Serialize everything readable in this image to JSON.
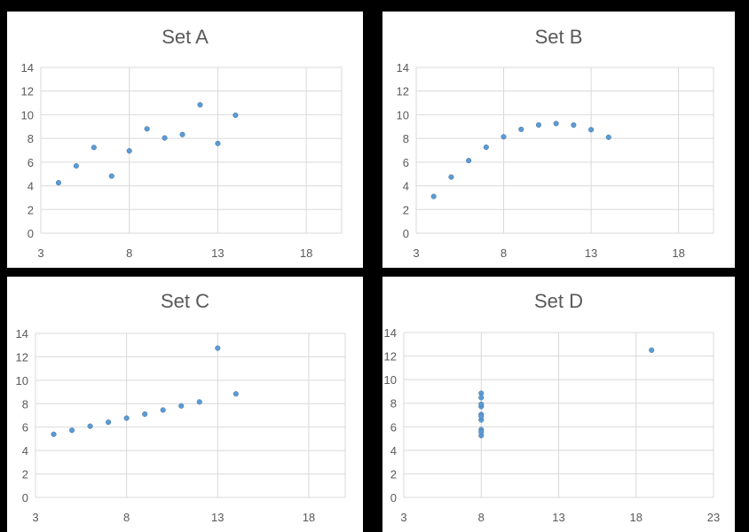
{
  "chart_data": [
    {
      "type": "scatter",
      "title": "Set A",
      "xlim": [
        3,
        20
      ],
      "ylim": [
        0,
        14
      ],
      "x_ticks": [
        "3",
        "8",
        "13",
        "18"
      ],
      "y_ticks": [
        "0",
        "2",
        "4",
        "6",
        "8",
        "10",
        "12",
        "14"
      ],
      "series": [
        {
          "points": [
            [
              10,
              8.04
            ],
            [
              8,
              6.95
            ],
            [
              13,
              7.58
            ],
            [
              9,
              8.81
            ],
            [
              11,
              8.33
            ],
            [
              14,
              9.96
            ],
            [
              6,
              7.24
            ],
            [
              4,
              4.26
            ],
            [
              12,
              10.84
            ],
            [
              7,
              4.82
            ],
            [
              5,
              5.68
            ]
          ]
        }
      ],
      "colors": {
        "marker": "#5b9bd5"
      },
      "grid": true
    },
    {
      "type": "scatter",
      "title": "Set B",
      "xlim": [
        3,
        20
      ],
      "ylim": [
        0,
        14
      ],
      "x_ticks": [
        "3",
        "8",
        "13",
        "18"
      ],
      "y_ticks": [
        "0",
        "2",
        "4",
        "6",
        "8",
        "10",
        "12",
        "14"
      ],
      "series": [
        {
          "points": [
            [
              10,
              9.14
            ],
            [
              8,
              8.14
            ],
            [
              13,
              8.74
            ],
            [
              9,
              8.77
            ],
            [
              11,
              9.26
            ],
            [
              14,
              8.1
            ],
            [
              6,
              6.13
            ],
            [
              4,
              3.1
            ],
            [
              12,
              9.13
            ],
            [
              7,
              7.26
            ],
            [
              5,
              4.74
            ]
          ]
        }
      ],
      "colors": {
        "marker": "#5b9bd5"
      },
      "grid": true
    },
    {
      "type": "scatter",
      "title": "Set C",
      "xlim": [
        3,
        20
      ],
      "ylim": [
        0,
        14
      ],
      "x_ticks": [
        "3",
        "8",
        "13",
        "18"
      ],
      "y_ticks": [
        "0",
        "2",
        "4",
        "6",
        "8",
        "10",
        "12",
        "14"
      ],
      "series": [
        {
          "points": [
            [
              10,
              7.46
            ],
            [
              8,
              6.77
            ],
            [
              13,
              12.74
            ],
            [
              9,
              7.11
            ],
            [
              11,
              7.81
            ],
            [
              14,
              8.84
            ],
            [
              6,
              6.08
            ],
            [
              4,
              5.39
            ],
            [
              12,
              8.15
            ],
            [
              7,
              6.42
            ],
            [
              5,
              5.73
            ]
          ]
        }
      ],
      "colors": {
        "marker": "#5b9bd5"
      },
      "grid": true
    },
    {
      "type": "scatter",
      "title": "Set D",
      "xlim": [
        3,
        23
      ],
      "ylim": [
        0,
        14
      ],
      "x_ticks": [
        "3",
        "8",
        "13",
        "18",
        "23"
      ],
      "y_ticks": [
        "0",
        "2",
        "4",
        "6",
        "8",
        "10",
        "12",
        "14"
      ],
      "series": [
        {
          "points": [
            [
              8,
              6.58
            ],
            [
              8,
              5.76
            ],
            [
              8,
              7.71
            ],
            [
              8,
              8.84
            ],
            [
              8,
              8.47
            ],
            [
              8,
              7.04
            ],
            [
              8,
              5.25
            ],
            [
              19,
              12.5
            ],
            [
              8,
              5.56
            ],
            [
              8,
              7.91
            ],
            [
              8,
              6.89
            ]
          ]
        }
      ],
      "colors": {
        "marker": "#5b9bd5"
      },
      "grid": true
    }
  ]
}
